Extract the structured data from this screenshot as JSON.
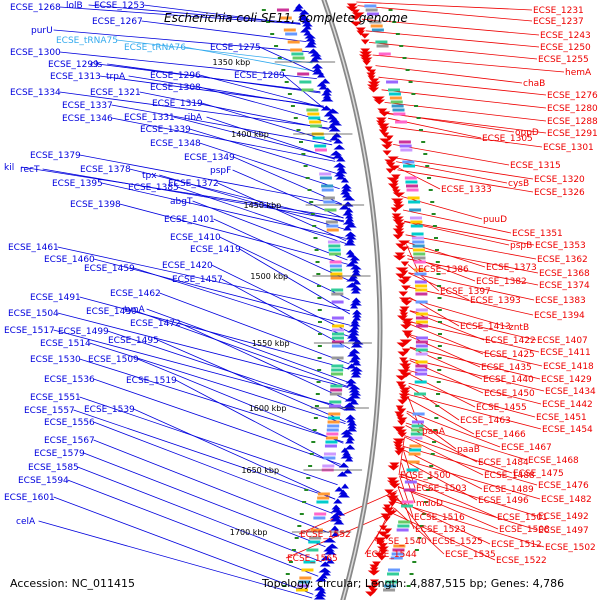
{
  "title": "Escherichia coli SE11, complete genome",
  "footer": {
    "accession": "Accession: NC_011415",
    "summary": "Topology: circular; Length: 4,887,515 bp; Genes: 4,786"
  },
  "colors": {
    "forward_strand": "#0000dd",
    "reverse_strand": "#ee0000",
    "trna": "#33aaee",
    "backbone": "#888888",
    "marker": "#228822"
  },
  "kbp_ticks": [
    "1350 kbp",
    "1400 kbp",
    "1450 kbp",
    "1500 kbp",
    "1550 kbp",
    "1600 kbp",
    "1650 kbp",
    "1700 kbp"
  ],
  "left_labels": [
    {
      "text": "ECSE_1268",
      "kind": "gene"
    },
    {
      "text": "lolB",
      "kind": "gene"
    },
    {
      "text": "ECSE_1253",
      "kind": "gene"
    },
    {
      "text": "ECSE_1267",
      "kind": "gene"
    },
    {
      "text": "purU",
      "kind": "gene"
    },
    {
      "text": "ECSE_tRNA75",
      "kind": "trna"
    },
    {
      "text": "ECSE_tRNA76",
      "kind": "trna"
    },
    {
      "text": "ECSE_1275",
      "kind": "gene"
    },
    {
      "text": "ECSE_1300",
      "kind": "gene"
    },
    {
      "text": "ECSE_1299",
      "kind": "gene"
    },
    {
      "text": "cls",
      "kind": "gene"
    },
    {
      "text": "ECSE_1313",
      "kind": "gene"
    },
    {
      "text": "trpA",
      "kind": "gene"
    },
    {
      "text": "ECSE_1296",
      "kind": "gene"
    },
    {
      "text": "ECSE_1289",
      "kind": "gene"
    },
    {
      "text": "ECSE_1308",
      "kind": "gene"
    },
    {
      "text": "ECSE_1334",
      "kind": "gene"
    },
    {
      "text": "ECSE_1321",
      "kind": "gene"
    },
    {
      "text": "ECSE_1319",
      "kind": "gene"
    },
    {
      "text": "ECSE_1337",
      "kind": "gene"
    },
    {
      "text": "ECSE_1331",
      "kind": "gene"
    },
    {
      "text": "ribA",
      "kind": "gene"
    },
    {
      "text": "ECSE_1346",
      "kind": "gene"
    },
    {
      "text": "ECSE_1339",
      "kind": "gene"
    },
    {
      "text": "ECSE_1348",
      "kind": "gene"
    },
    {
      "text": "ECSE_1349",
      "kind": "gene"
    },
    {
      "text": "pspF",
      "kind": "gene"
    },
    {
      "text": "ECSE_1379",
      "kind": "gene"
    },
    {
      "text": "kil",
      "kind": "gene"
    },
    {
      "text": "recT",
      "kind": "gene"
    },
    {
      "text": "ECSE_1378",
      "kind": "gene"
    },
    {
      "text": "tpx",
      "kind": "gene"
    },
    {
      "text": "ECSE_1395",
      "kind": "gene"
    },
    {
      "text": "ECSE_1385",
      "kind": "gene"
    },
    {
      "text": "ECSE_1372",
      "kind": "gene"
    },
    {
      "text": "abgT",
      "kind": "gene"
    },
    {
      "text": "ECSE_1398",
      "kind": "gene"
    },
    {
      "text": "ECSE_1401",
      "kind": "gene"
    },
    {
      "text": "ECSE_1410",
      "kind": "gene"
    },
    {
      "text": "ECSE_1461",
      "kind": "gene"
    },
    {
      "text": "ECSE_1419",
      "kind": "gene"
    },
    {
      "text": "ECSE_1460",
      "kind": "gene"
    },
    {
      "text": "ECSE_1420",
      "kind": "gene"
    },
    {
      "text": "ECSE_1459",
      "kind": "gene"
    },
    {
      "text": "ECSE_1457",
      "kind": "gene"
    },
    {
      "text": "ECSE_1462",
      "kind": "gene"
    },
    {
      "text": "ECSE_1491",
      "kind": "gene"
    },
    {
      "text": "tynA",
      "kind": "gene"
    },
    {
      "text": "ECSE_1504",
      "kind": "gene"
    },
    {
      "text": "ECSE_1490",
      "kind": "gene"
    },
    {
      "text": "ECSE_1472",
      "kind": "gene"
    },
    {
      "text": "ECSE_1517",
      "kind": "gene"
    },
    {
      "text": "ECSE_1499",
      "kind": "gene"
    },
    {
      "text": "ECSE_1514",
      "kind": "gene"
    },
    {
      "text": "ECSE_1495",
      "kind": "gene"
    },
    {
      "text": "ECSE_1530",
      "kind": "gene"
    },
    {
      "text": "ECSE_1509",
      "kind": "gene"
    },
    {
      "text": "ECSE_1536",
      "kind": "gene"
    },
    {
      "text": "ECSE_1519",
      "kind": "gene"
    },
    {
      "text": "ECSE_1551",
      "kind": "gene"
    },
    {
      "text": "ECSE_1557",
      "kind": "gene"
    },
    {
      "text": "ECSE_1539",
      "kind": "gene"
    },
    {
      "text": "ECSE_1556",
      "kind": "gene"
    },
    {
      "text": "ECSE_1567",
      "kind": "gene"
    },
    {
      "text": "ECSE_1579",
      "kind": "gene"
    },
    {
      "text": "ECSE_1585",
      "kind": "gene"
    },
    {
      "text": "ECSE_1594",
      "kind": "gene"
    },
    {
      "text": "ECSE_1601",
      "kind": "gene"
    },
    {
      "text": "celA",
      "kind": "gene"
    }
  ],
  "right_labels": [
    "ECSE_1231",
    "ECSE_1237",
    "ECSE_1243",
    "ECSE_1250",
    "ECSE_1255",
    "hemA",
    "chaB",
    "ECSE_1276",
    "ECSE_1280",
    "ECSE_1288",
    "oppD",
    "ECSE_1291",
    "ECSE_1305",
    "ECSE_1301",
    "ECSE_1315",
    "ECSE_1320",
    "cysB",
    "ECSE_1333",
    "ECSE_1326",
    "puuD",
    "ECSE_1351",
    "pspB",
    "ECSE_1353",
    "ECSE_1362",
    "ECSE_1386",
    "ECSE_1373",
    "ECSE_1368",
    "ECSE_1382",
    "ECSE_1374",
    "ECSE_1397",
    "ECSE_1393",
    "ECSE_1383",
    "ECSE_1394",
    "zntB",
    "ECSE_1413",
    "ECSE_1422",
    "ECSE_1407",
    "ECSE_1425",
    "ECSE_1411",
    "ECSE_1435",
    "ECSE_1418",
    "ECSE_1440",
    "ECSE_1429",
    "ECSE_1434",
    "ECSE_1450",
    "ECSE_1455",
    "ECSE_1442",
    "ECSE_1451",
    "ECSE_1463",
    "ECSE_1454",
    "paaA",
    "ECSE_1466",
    "ECSE_1467",
    "paaB",
    "ECSE_1484",
    "ECSE_1468",
    "ECSE_1475",
    "ECSE_1500",
    "ECSE_1488",
    "ECSE_1476",
    "ECSE_1503",
    "ECSE_1489",
    "ECSE_1482",
    "mdoD",
    "ECSE_1496",
    "ECSE_1516",
    "ECSE_1501",
    "ECSE_1492",
    "ECSE_1523",
    "ECSE_1508",
    "ECSE_1497",
    "ECSE_1552",
    "ECSE_1540",
    "ECSE_1525",
    "ECSE_1512",
    "ECSE_1502",
    "ECSE_1544",
    "ECSE_1535",
    "ECSE_1522",
    "ECSE_1565"
  ]
}
